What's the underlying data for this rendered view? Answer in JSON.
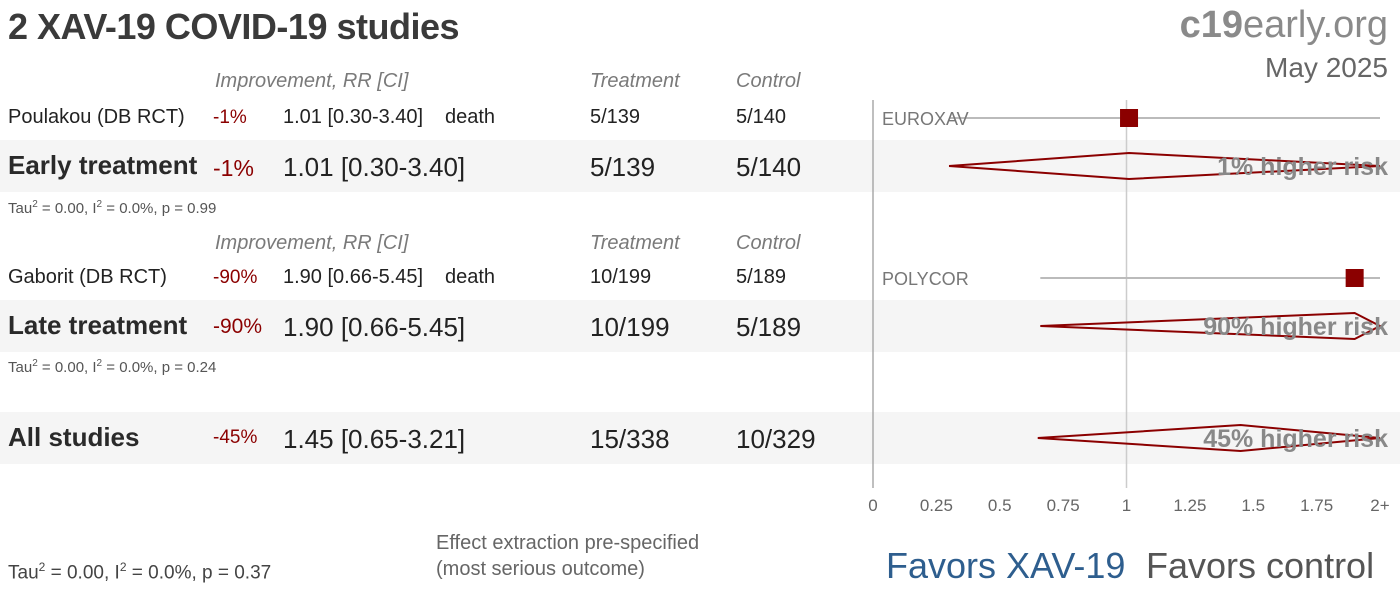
{
  "title": "2 XAV-19 COVID-19 studies",
  "brand": {
    "bold": "c19",
    "rest": "early.org"
  },
  "date": "May 2025",
  "headers": {
    "improvement": "Improvement, RR [CI]",
    "treatment": "Treatment",
    "control": "Control"
  },
  "groups": [
    {
      "study": {
        "name": "Poulakou (DB RCT)",
        "improvement": "-1%",
        "rr_ci": "1.01 [0.30-3.40]",
        "outcome": "death",
        "treatment": "5/139",
        "control": "5/140",
        "plot_label": "EUROXAV"
      },
      "summary": {
        "label": "Early treatment",
        "improvement": "-1%",
        "rr_ci": "1.01 [0.30-3.40]",
        "treatment": "5/139",
        "control": "5/140",
        "effect_text": "1% higher risk"
      },
      "stats": {
        "tau": "Tau",
        "i": "I",
        "text": " = 0.00, ",
        "text2": " = 0.0%, p = 0.99"
      }
    },
    {
      "study": {
        "name": "Gaborit (DB RCT)",
        "improvement": "-90%",
        "rr_ci": "1.90 [0.66-5.45]",
        "outcome": "death",
        "treatment": "10/199",
        "control": "5/189",
        "plot_label": "POLYCOR"
      },
      "summary": {
        "label": "Late treatment",
        "improvement": "-90%",
        "rr_ci": "1.90 [0.66-5.45]",
        "treatment": "10/199",
        "control": "5/189",
        "effect_text": "90% higher risk"
      },
      "stats": {
        "tau": "Tau",
        "i": "I",
        "text": " = 0.00, ",
        "text2": " = 0.0%, p = 0.24"
      }
    }
  ],
  "all": {
    "label": "All studies",
    "improvement": "-45%",
    "rr_ci": "1.45 [0.65-3.21]",
    "treatment": "15/338",
    "control": "10/329",
    "effect_text": "45% higher risk"
  },
  "overall_stats": {
    "tau": "Tau",
    "i": "I",
    "text": " = 0.00, ",
    "text2": " = 0.0%, p = 0.37"
  },
  "note": {
    "line1": "Effect extraction pre-specified",
    "line2": "(most serious outcome)"
  },
  "favors": {
    "left": "Favors XAV-19",
    "right": "Favors control"
  },
  "colors": {
    "marker": "#8b0000",
    "favors_left": "#2e5e8e",
    "axis": "#aaaaaa"
  },
  "chart_data": {
    "type": "forest",
    "xlim": [
      0,
      2
    ],
    "xscale": "linear",
    "x_tick_labels": [
      "0",
      "0.25",
      "0.5",
      "0.75",
      "1",
      "1.25",
      "1.5",
      "1.75",
      "2+"
    ],
    "x_ticks": [
      0,
      0.25,
      0.5,
      0.75,
      1,
      1.25,
      1.5,
      1.75,
      2
    ],
    "reference_line": 1,
    "studies": [
      {
        "name": "EUROXAV",
        "rr": 1.01,
        "lo": 0.3,
        "hi": 3.4
      },
      {
        "name": "POLYCOR",
        "rr": 1.9,
        "lo": 0.66,
        "hi": 5.45
      }
    ],
    "pooled": [
      {
        "name": "Early treatment",
        "rr": 1.01,
        "lo": 0.3,
        "hi": 3.4
      },
      {
        "name": "Late treatment",
        "rr": 1.9,
        "lo": 0.66,
        "hi": 5.45
      },
      {
        "name": "All studies",
        "rr": 1.45,
        "lo": 0.65,
        "hi": 3.21
      }
    ]
  }
}
